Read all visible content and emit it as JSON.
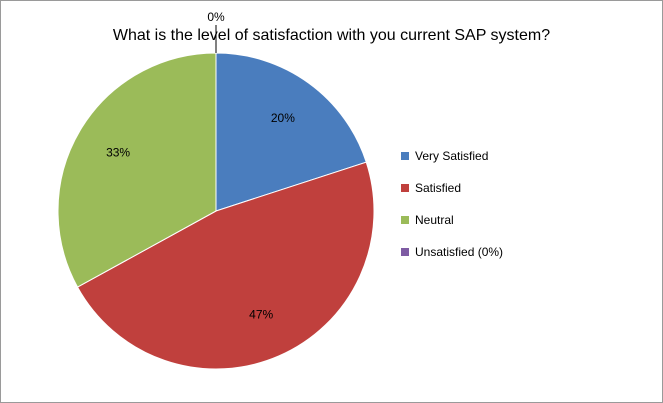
{
  "chart_data": {
    "type": "pie",
    "title": "What is the level of satisfaction with you current SAP system?",
    "categories": [
      "Very Satisfied",
      "Satisfied",
      "Neutral",
      "Unsatisfied (0%)"
    ],
    "values": [
      20,
      47,
      33,
      0
    ],
    "data_labels": [
      "20%",
      "47%",
      "33%",
      "0%"
    ],
    "colors": [
      "#4a7dbe",
      "#c0403d",
      "#9bbb59",
      "#7e5ba3"
    ],
    "legend_position": "right"
  }
}
